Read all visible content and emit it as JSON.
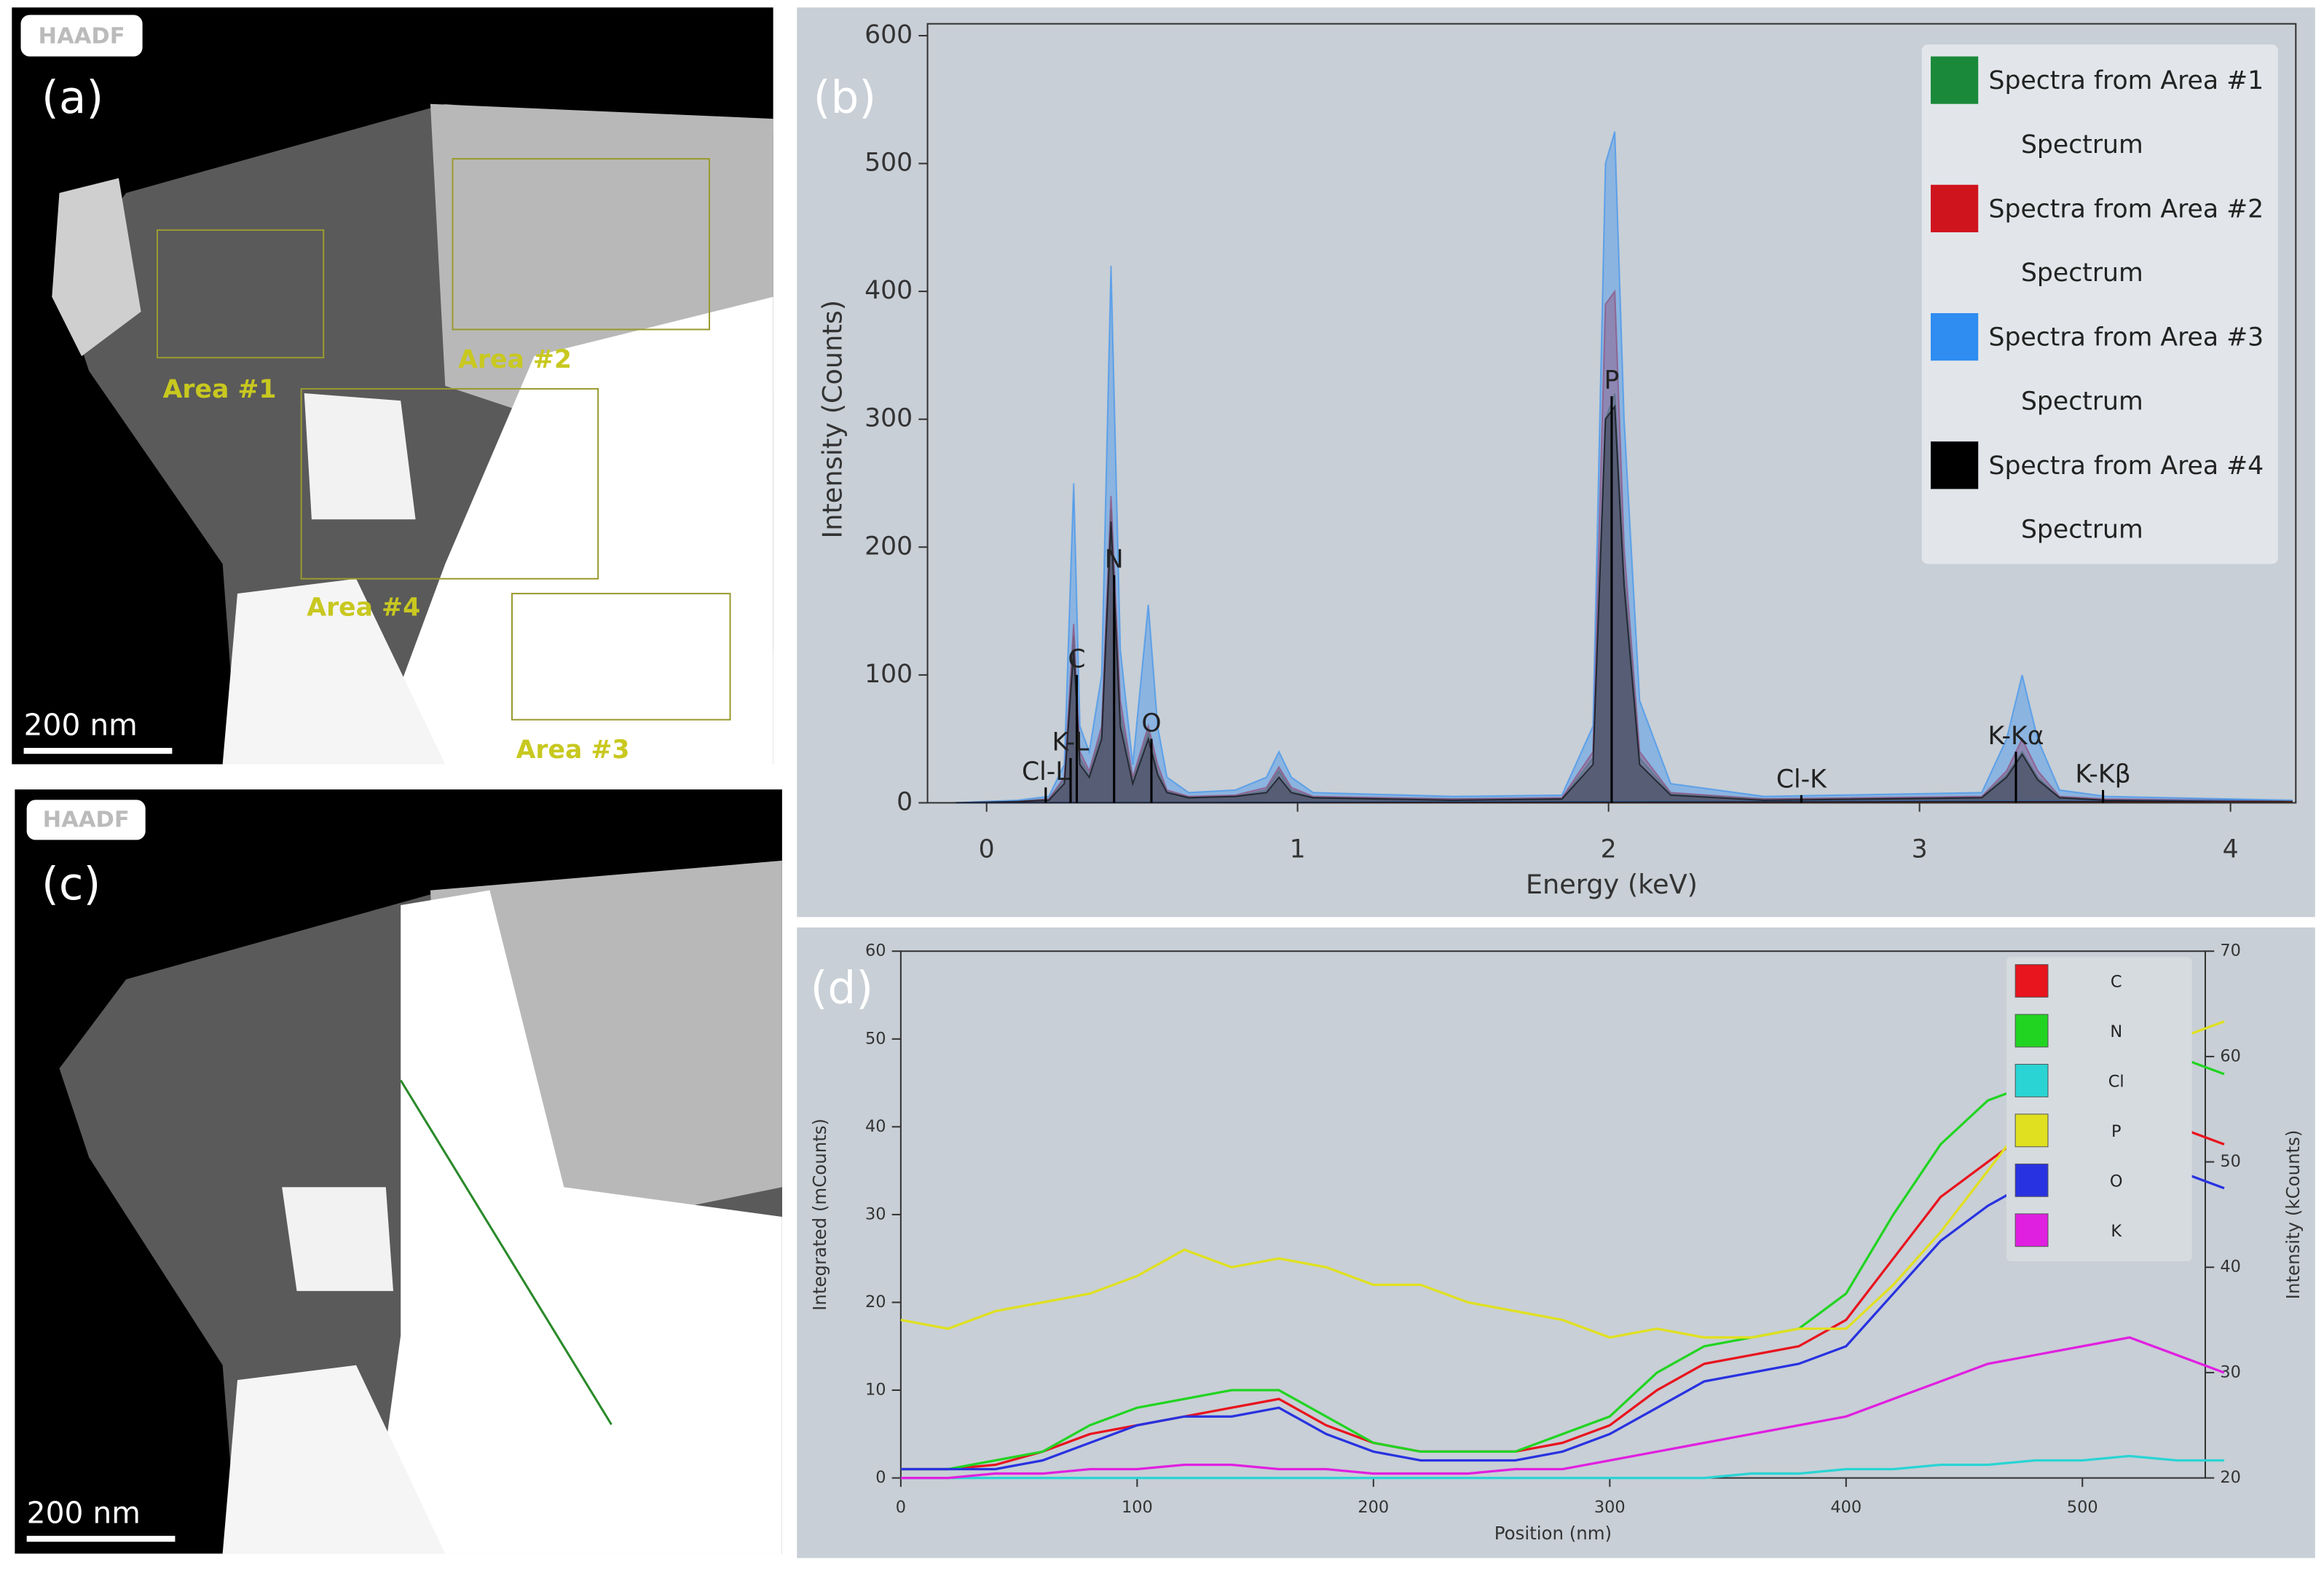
{
  "images": [
    {
      "label": "(a)",
      "badge": "HAADF",
      "scale_bar": "200 nm",
      "areas": [
        "Area #1",
        "Area #2",
        "Area #3",
        "Area #4"
      ]
    },
    {
      "label": "(c)",
      "badge": "HAADF",
      "scale_bar": "200 nm"
    }
  ],
  "chart_data": [
    {
      "type": "area",
      "title": "(b)",
      "x_label": "Energy (keV)",
      "y_label": "Intensity (Counts)",
      "x": [
        -0.1,
        0.1,
        0.2,
        0.25,
        0.28,
        0.3,
        0.33,
        0.37,
        0.4,
        0.43,
        0.47,
        0.52,
        0.55,
        0.58,
        0.65,
        0.8,
        0.9,
        0.94,
        0.98,
        1.05,
        1.5,
        1.85,
        1.95,
        1.99,
        2.02,
        2.05,
        2.1,
        2.2,
        2.5,
        3.2,
        3.28,
        3.33,
        3.38,
        3.45,
        3.6,
        4.0,
        4.2
      ],
      "series": [
        {
          "name": "Spectra from Area #1",
          "sublabel": "Spectrum",
          "color": "#1a8a3a",
          "values": [
            0,
            1,
            3,
            18,
            130,
            35,
            22,
            55,
            230,
            70,
            18,
            55,
            25,
            9,
            4,
            5,
            10,
            25,
            10,
            4,
            3,
            3,
            35,
            300,
            320,
            180,
            35,
            7,
            3,
            4,
            22,
            40,
            20,
            4,
            2,
            2,
            1
          ]
        },
        {
          "name": "Spectra from Area #2",
          "sublabel": "Spectrum",
          "color": "#d0141e",
          "values": [
            0,
            1,
            3,
            20,
            140,
            40,
            25,
            60,
            240,
            80,
            20,
            60,
            30,
            10,
            5,
            6,
            12,
            28,
            12,
            5,
            3,
            4,
            40,
            390,
            400,
            200,
            40,
            8,
            3,
            5,
            25,
            50,
            25,
            5,
            3,
            2,
            1
          ]
        },
        {
          "name": "Spectra from Area #3",
          "sublabel": "Spectrum",
          "color": "#2f8cf0",
          "values": [
            0,
            2,
            5,
            30,
            250,
            60,
            40,
            100,
            420,
            120,
            30,
            155,
            60,
            20,
            8,
            10,
            20,
            40,
            20,
            8,
            5,
            6,
            60,
            500,
            525,
            300,
            80,
            15,
            5,
            8,
            50,
            100,
            50,
            10,
            5,
            3,
            2
          ]
        },
        {
          "name": "Spectra from Area #4",
          "sublabel": "Spectrum",
          "color": "#000000",
          "values": [
            0,
            1,
            2,
            15,
            120,
            30,
            20,
            50,
            220,
            60,
            15,
            50,
            22,
            8,
            4,
            5,
            8,
            20,
            8,
            4,
            2,
            3,
            30,
            300,
            310,
            170,
            30,
            6,
            2,
            4,
            20,
            38,
            18,
            4,
            2,
            1,
            1
          ]
        }
      ],
      "markers": [
        {
          "label": "C",
          "x": 0.29,
          "y": 100
        },
        {
          "label": "N",
          "x": 0.41,
          "y": 178
        },
        {
          "label": "O",
          "x": 0.53,
          "y": 50
        },
        {
          "label": "K-L",
          "x": 0.27,
          "y": 35
        },
        {
          "label": "Cl-L",
          "x": 0.19,
          "y": 12
        },
        {
          "label": "P",
          "x": 2.01,
          "y": 318
        },
        {
          "label": "Cl-K",
          "x": 2.62,
          "y": 6
        },
        {
          "label": "K-Kα",
          "x": 3.31,
          "y": 40
        },
        {
          "label": "K-Kβ",
          "x": 3.59,
          "y": 10
        }
      ],
      "xlim": [
        -0.19,
        4.21
      ],
      "ylim": [
        0,
        600
      ],
      "xticks": [
        0,
        1,
        2,
        3,
        4
      ],
      "yticks": [
        0,
        100,
        200,
        300,
        400,
        500,
        600
      ],
      "legend": "upper right"
    },
    {
      "type": "line",
      "title": "(d)",
      "x_label": "Position (nm)",
      "y_label": "Integrated (mCounts)",
      "y2_label": "Intensity (kCounts)",
      "x": [
        0,
        20,
        40,
        60,
        80,
        100,
        120,
        140,
        160,
        180,
        200,
        220,
        240,
        260,
        280,
        300,
        320,
        340,
        360,
        380,
        400,
        420,
        440,
        460,
        480,
        500,
        520,
        540,
        560
      ],
      "series": [
        {
          "name": "C",
          "color": "#e8141e",
          "values": [
            1,
            1,
            1.5,
            3,
            5,
            6,
            7,
            8,
            9,
            6,
            4,
            3,
            3,
            3,
            4,
            6,
            10,
            13,
            14,
            15,
            18,
            25,
            32,
            36,
            40,
            38,
            42,
            40,
            38
          ]
        },
        {
          "name": "N",
          "color": "#22d422",
          "values": [
            1,
            1,
            2,
            3,
            6,
            8,
            9,
            10,
            10,
            7,
            4,
            3,
            3,
            3,
            5,
            7,
            12,
            15,
            16,
            17,
            21,
            30,
            38,
            43,
            45,
            50,
            52,
            48,
            46
          ]
        },
        {
          "name": "Cl",
          "color": "#2ad4d4",
          "values": [
            0,
            0,
            0,
            0,
            0,
            0,
            0,
            0,
            0,
            0,
            0,
            0,
            0,
            0,
            0,
            0,
            0,
            0,
            0.5,
            0.5,
            1,
            1,
            1.5,
            1.5,
            2,
            2,
            2.5,
            2,
            2
          ]
        },
        {
          "name": "P",
          "color": "#e0e020",
          "values": [
            18,
            17,
            19,
            20,
            21,
            23,
            26,
            24,
            25,
            24,
            22,
            22,
            20,
            19,
            18,
            16,
            17,
            16,
            16,
            17,
            17,
            22,
            28,
            35,
            42,
            45,
            48,
            50,
            52
          ]
        },
        {
          "name": "O",
          "color": "#2832e0",
          "values": [
            1,
            1,
            1,
            2,
            4,
            6,
            7,
            7,
            8,
            5,
            3,
            2,
            2,
            2,
            3,
            5,
            8,
            11,
            12,
            13,
            15,
            21,
            27,
            31,
            34,
            33,
            36,
            35,
            33
          ]
        },
        {
          "name": "K",
          "color": "#e020e0",
          "values": [
            0,
            0,
            0.5,
            0.5,
            1,
            1,
            1.5,
            1.5,
            1,
            1,
            0.5,
            0.5,
            0.5,
            1,
            1,
            2,
            3,
            4,
            5,
            6,
            7,
            9,
            11,
            13,
            14,
            15,
            16,
            14,
            12
          ]
        }
      ],
      "xlim": [
        0,
        552
      ],
      "ylim": [
        0,
        60
      ],
      "y2lim": [
        20,
        70
      ],
      "xticks": [
        0,
        100,
        200,
        300,
        400,
        500
      ],
      "yticks": [
        0,
        10,
        20,
        30,
        40,
        50,
        60
      ],
      "y2ticks": [
        20,
        30,
        40,
        50,
        60,
        70
      ],
      "legend": "upper right"
    }
  ]
}
